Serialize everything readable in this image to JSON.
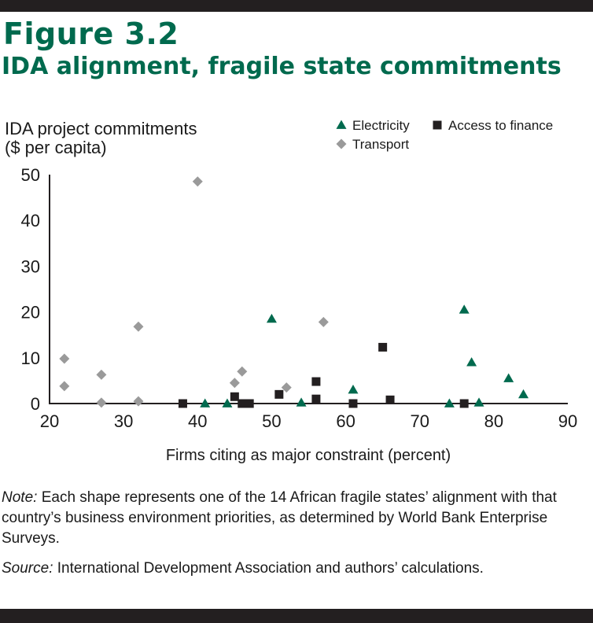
{
  "figure": {
    "label": "Figure 3.2",
    "title": "IDA alignment, fragile state commitments"
  },
  "colors": {
    "accent": "#006a4e",
    "electricity": "#006a4e",
    "access_to_finance": "#231f20",
    "transport": "#9a9a9a",
    "bars": "#231f20"
  },
  "chart_data": {
    "type": "scatter",
    "title": "",
    "ylabel_lines": [
      "IDA project commitments",
      "($ per capita)"
    ],
    "xlabel": "Firms citing as major constraint (percent)",
    "xlim": [
      20,
      90
    ],
    "ylim": [
      0,
      50
    ],
    "xticks": [
      20,
      30,
      40,
      50,
      60,
      70,
      80,
      90
    ],
    "yticks": [
      0,
      10,
      20,
      30,
      40,
      50
    ],
    "legend_position": "top-right",
    "series": [
      {
        "name": "Electricity",
        "marker": "triangle",
        "points": [
          [
            41,
            0
          ],
          [
            44,
            0
          ],
          [
            50,
            18.5
          ],
          [
            54,
            0.2
          ],
          [
            61,
            3
          ],
          [
            74,
            0
          ],
          [
            76,
            20.5
          ],
          [
            77,
            9
          ],
          [
            78,
            0.2
          ],
          [
            82,
            5.5
          ],
          [
            84,
            2
          ]
        ]
      },
      {
        "name": "Access to finance",
        "marker": "square",
        "points": [
          [
            38,
            0
          ],
          [
            45,
            1.5
          ],
          [
            46,
            0
          ],
          [
            47,
            0
          ],
          [
            51,
            2
          ],
          [
            56,
            4.8
          ],
          [
            56,
            1
          ],
          [
            61,
            0
          ],
          [
            65,
            12.3
          ],
          [
            66,
            0.8
          ],
          [
            76,
            0
          ]
        ]
      },
      {
        "name": "Transport",
        "marker": "diamond",
        "points": [
          [
            22,
            9.8
          ],
          [
            22,
            3.8
          ],
          [
            27,
            6.3
          ],
          [
            27,
            0.2
          ],
          [
            32,
            16.8
          ],
          [
            32,
            0.5
          ],
          [
            40,
            48.5
          ],
          [
            45,
            4.5
          ],
          [
            46,
            7
          ],
          [
            52,
            3.5
          ],
          [
            57,
            17.8
          ]
        ]
      }
    ]
  },
  "note": {
    "label": "Note:",
    "text": " Each shape represents one of the 14 African fragile states’ alignment with that country’s business environment priorities, as determined by World Bank Enterprise Surveys."
  },
  "source": {
    "label": "Source:",
    "text": " International Development Association and authors’ calculations."
  }
}
